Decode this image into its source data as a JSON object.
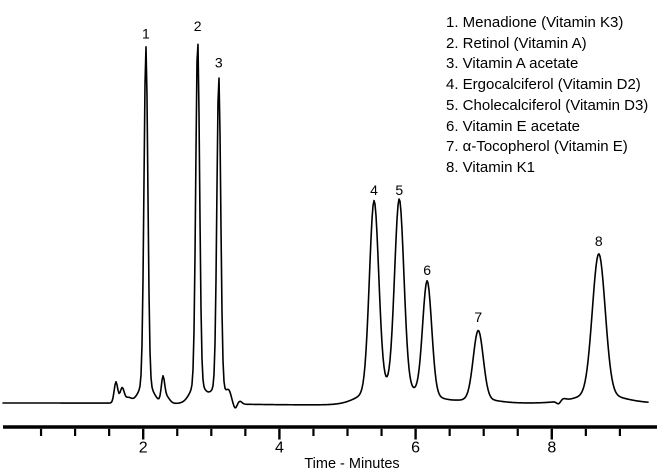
{
  "chart_data": {
    "type": "line",
    "title": "",
    "xlabel": "Time - Minutes",
    "ylabel": "",
    "x_axis": {
      "min": 0,
      "max": 9.5,
      "labeled_ticks": [
        2,
        4,
        6,
        8
      ],
      "tick_labels": [
        "2",
        "4",
        "6",
        "8"
      ],
      "minor_tick_interval_min": 0.5,
      "minor_tick_start_min": 0.5,
      "minor_tick_end_min": 9.0
    },
    "y_axis_visible": false,
    "grid": false,
    "legend_position": "top-right",
    "peaks": [
      {
        "number": "1",
        "name": "Menadione (Vitamin K3)",
        "retention_time_min": 2.04,
        "relative_height": 0.98,
        "sigma_min": 0.028
      },
      {
        "number": "2",
        "name": "Retinol (Vitamin A)",
        "retention_time_min": 2.8,
        "relative_height": 1.0,
        "sigma_min": 0.028
      },
      {
        "number": "3",
        "name": "Vitamin A acetate",
        "retention_time_min": 3.11,
        "relative_height": 0.9,
        "sigma_min": 0.028
      },
      {
        "number": "4",
        "name": "Ergocalciferol (Vitamin D2)",
        "retention_time_min": 5.39,
        "relative_height": 0.55,
        "sigma_min": 0.068
      },
      {
        "number": "5",
        "name": "Cholecalciferol (Vitamin D3)",
        "retention_time_min": 5.76,
        "relative_height": 0.55,
        "sigma_min": 0.068
      },
      {
        "number": "6",
        "name": "Vitamin E acetate",
        "retention_time_min": 6.17,
        "relative_height": 0.33,
        "sigma_min": 0.066
      },
      {
        "number": "7",
        "name": "α-Tocopherol (Vitamin E)",
        "retention_time_min": 6.92,
        "relative_height": 0.2,
        "sigma_min": 0.073
      },
      {
        "number": "8",
        "name": "Vitamin K1",
        "retention_time_min": 8.69,
        "relative_height": 0.41,
        "sigma_min": 0.094
      }
    ],
    "baseline_features": [
      {
        "time_min": 1.6,
        "relative_height": 0.058,
        "sigma_min": 0.026
      },
      {
        "time_min": 1.69,
        "relative_height": 0.041,
        "sigma_min": 0.03
      },
      {
        "time_min": 1.78,
        "relative_height": 0.014,
        "sigma_min": 0.045
      },
      {
        "time_min": 2.29,
        "relative_height": 0.063,
        "sigma_min": 0.024
      },
      {
        "time_min": 2.34,
        "relative_height": 0.019,
        "sigma_min": 0.045
      },
      {
        "time_min": 3.26,
        "relative_height": 0.022,
        "sigma_min": 0.032
      },
      {
        "time_min": 3.35,
        "relative_height": -0.014,
        "sigma_min": 0.026
      },
      {
        "time_min": 3.42,
        "relative_height": 0.008,
        "sigma_min": 0.03
      },
      {
        "time_min": 4.5,
        "relative_height": -0.005,
        "sigma_min": 1.2
      },
      {
        "time_min": 8.1,
        "relative_height": -0.008,
        "sigma_min": 0.028
      },
      {
        "time_min": 8.17,
        "relative_height": 0.005,
        "sigma_min": 0.04
      }
    ]
  },
  "colors": {
    "trace": "#000000",
    "axis": "#000000",
    "text": "#000000",
    "background": "#ffffff"
  }
}
